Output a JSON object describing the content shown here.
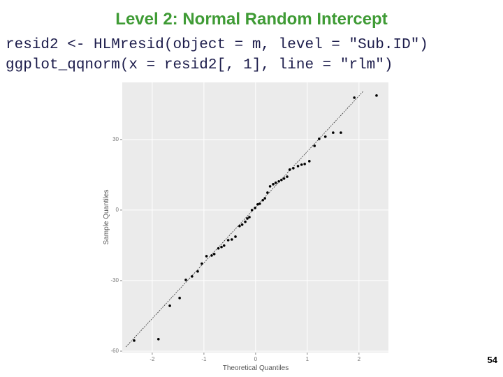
{
  "slide": {
    "title": "Level 2: Normal Random Intercept",
    "code": [
      "resid2 <- HLMresid(object = m, level = \"Sub.ID\")",
      "ggplot_qqnorm(x = resid2[, 1], line = \"rlm\")"
    ],
    "page_number": "54"
  },
  "chart_data": {
    "type": "scatter",
    "x_label": "Theoretical Quantiles",
    "y_label": "Sample Quantiles",
    "xlim": [
      -2.58,
      2.57
    ],
    "ylim": [
      -60.6,
      54.3
    ],
    "xticks": [
      -2,
      -1,
      0,
      1,
      2
    ],
    "yticks": [
      -60,
      -30,
      0,
      30
    ],
    "grid": true,
    "color": "#000000",
    "x": [
      -2.35,
      -1.88,
      -1.66,
      -1.47,
      -1.35,
      -1.23,
      -1.12,
      -1.04,
      -0.95,
      -0.85,
      -0.8,
      -0.72,
      -0.66,
      -0.61,
      -0.53,
      -0.46,
      -0.39,
      -0.31,
      -0.26,
      -0.2,
      -0.16,
      -0.12,
      -0.07,
      -0.01,
      0.04,
      0.08,
      0.14,
      0.18,
      0.23,
      0.28,
      0.34,
      0.39,
      0.45,
      0.5,
      0.55,
      0.61,
      0.66,
      0.73,
      0.82,
      0.89,
      0.95,
      1.04,
      1.14,
      1.23,
      1.35,
      1.5,
      1.65,
      1.91,
      2.34
    ],
    "values": [
      -55.5,
      -54.9,
      -40.7,
      -37.4,
      -29.7,
      -28.2,
      -26.1,
      -22.8,
      -19.6,
      -19.3,
      -18.7,
      -16.3,
      -15.7,
      -15.1,
      -12.8,
      -12.5,
      -11.3,
      -6.8,
      -6.2,
      -5.0,
      -3.6,
      -3.0,
      0,
      0.9,
      2.4,
      2.7,
      4.2,
      5.0,
      7.4,
      10.1,
      11.0,
      11.6,
      12.2,
      12.8,
      13.4,
      14.2,
      17.2,
      17.8,
      18.7,
      19.3,
      19.6,
      20.8,
      27.3,
      30.3,
      31.2,
      32.9,
      32.9,
      47.8,
      48.7
    ],
    "fit_line": {
      "x": [
        -2.51,
        2.09
      ],
      "y": [
        -58.2,
        50.7
      ]
    }
  }
}
